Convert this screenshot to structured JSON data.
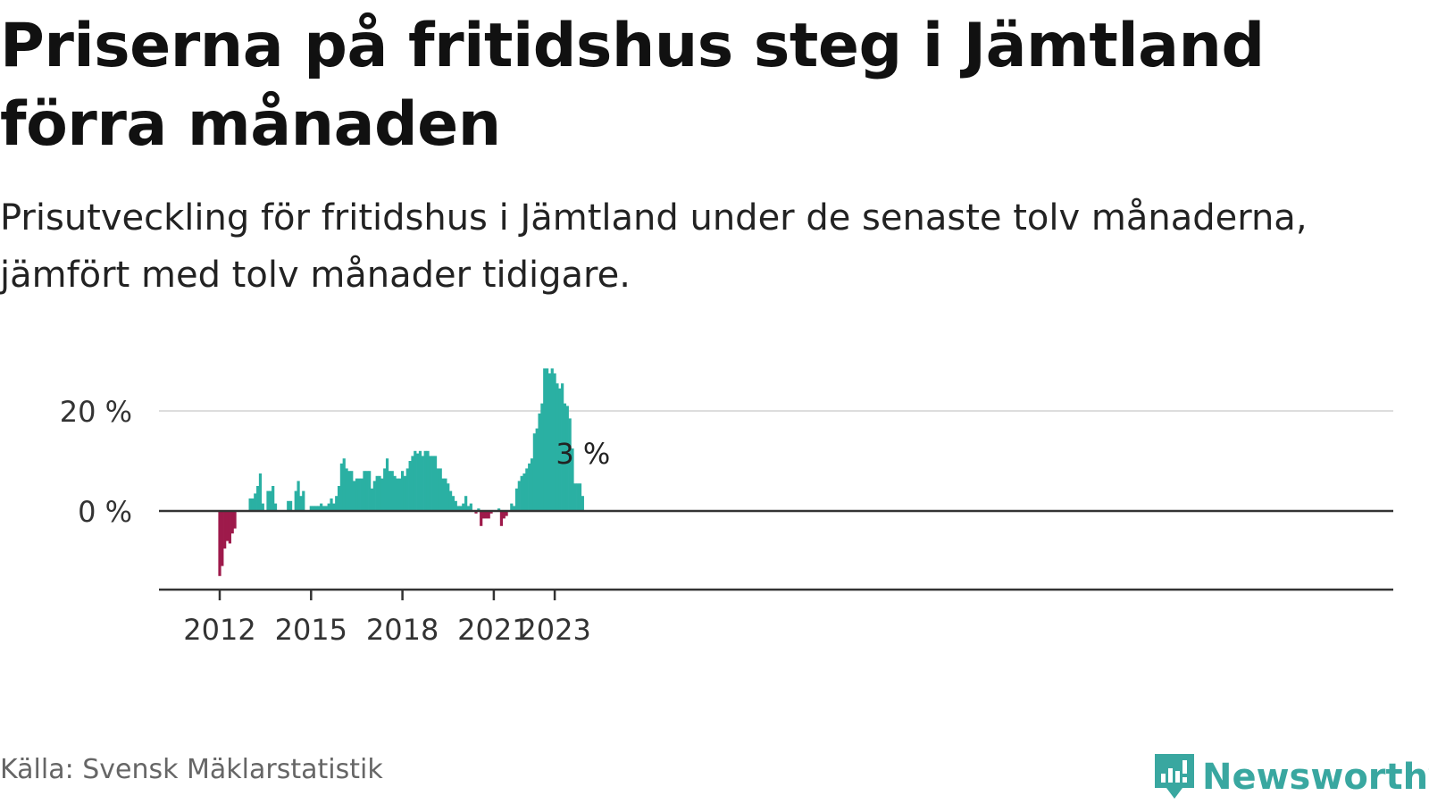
{
  "title": "Priserna på fritidshus steg i Jämtland förra månaden",
  "subtitle": "Prisutveckling för fritidshus i Jämtland under de senaste tolv månaderna, jämfört med tolv månader tidigare.",
  "source": "Källa: Svensk Mäklarstatistik",
  "brand": {
    "name": "Newsworthy",
    "icon": "newsworthy-logo-icon",
    "color": "#39a7a0"
  },
  "colors": {
    "positive": "#2ab0a3",
    "negative": "#9e1a4b",
    "zero_line": "#333333",
    "grid": "#dddddd",
    "axis": "#333333"
  },
  "chart_data": {
    "type": "bar",
    "x_start": "2012-01",
    "x_end": "2023-01",
    "xticks": [
      "2012",
      "2015",
      "2018",
      "2021",
      "2023"
    ],
    "yticks": [
      0,
      20
    ],
    "ytick_labels": [
      "0 %",
      "20 %"
    ],
    "ylim": [
      -15,
      30
    ],
    "annotation": "3 %",
    "series": [
      {
        "values": [
          -13,
          -11,
          -7.5,
          -6,
          -6.5,
          -4.5,
          -3.5,
          0,
          0,
          0,
          0,
          0,
          2.5,
          2.5,
          3.5,
          5,
          7.5,
          1.5,
          0,
          4,
          4,
          5,
          1.5,
          0,
          0,
          0,
          0,
          2,
          2,
          0,
          4,
          6,
          3,
          4,
          0,
          0,
          1,
          1,
          1,
          1,
          1.5,
          1,
          1,
          1.5,
          2.5,
          1.5,
          3,
          5,
          9.5,
          10.5,
          8.5,
          8,
          8,
          6,
          6.5,
          6.5,
          6.5,
          8,
          8,
          8,
          4.5,
          6,
          7,
          7,
          6.5,
          8.5,
          10.5,
          8,
          8,
          7,
          6.5,
          6.5,
          8,
          7,
          8.5,
          10,
          11,
          12,
          11.5,
          12,
          11,
          12,
          12,
          11,
          11,
          11,
          8.5,
          8.5,
          6.5,
          6.5,
          5.5,
          4,
          3,
          2,
          1,
          1,
          1.5,
          3,
          1,
          1.5,
          0,
          -0.5,
          0.5,
          -3,
          -1.5,
          -1.5,
          -1.5,
          -0.5,
          0,
          0,
          0.5,
          -3,
          -1.5,
          -1,
          0,
          1.5,
          1,
          4.5,
          6,
          7,
          7.5,
          8.5,
          9.5,
          10.5,
          15.5,
          16.5,
          19.5,
          21.5,
          28.5,
          28.5,
          27.5,
          28.5,
          27.5,
          25.5,
          24.5,
          25.5,
          21.5,
          21,
          18.5,
          12.5,
          5.5,
          5.5,
          5.5,
          3
        ]
      }
    ]
  }
}
